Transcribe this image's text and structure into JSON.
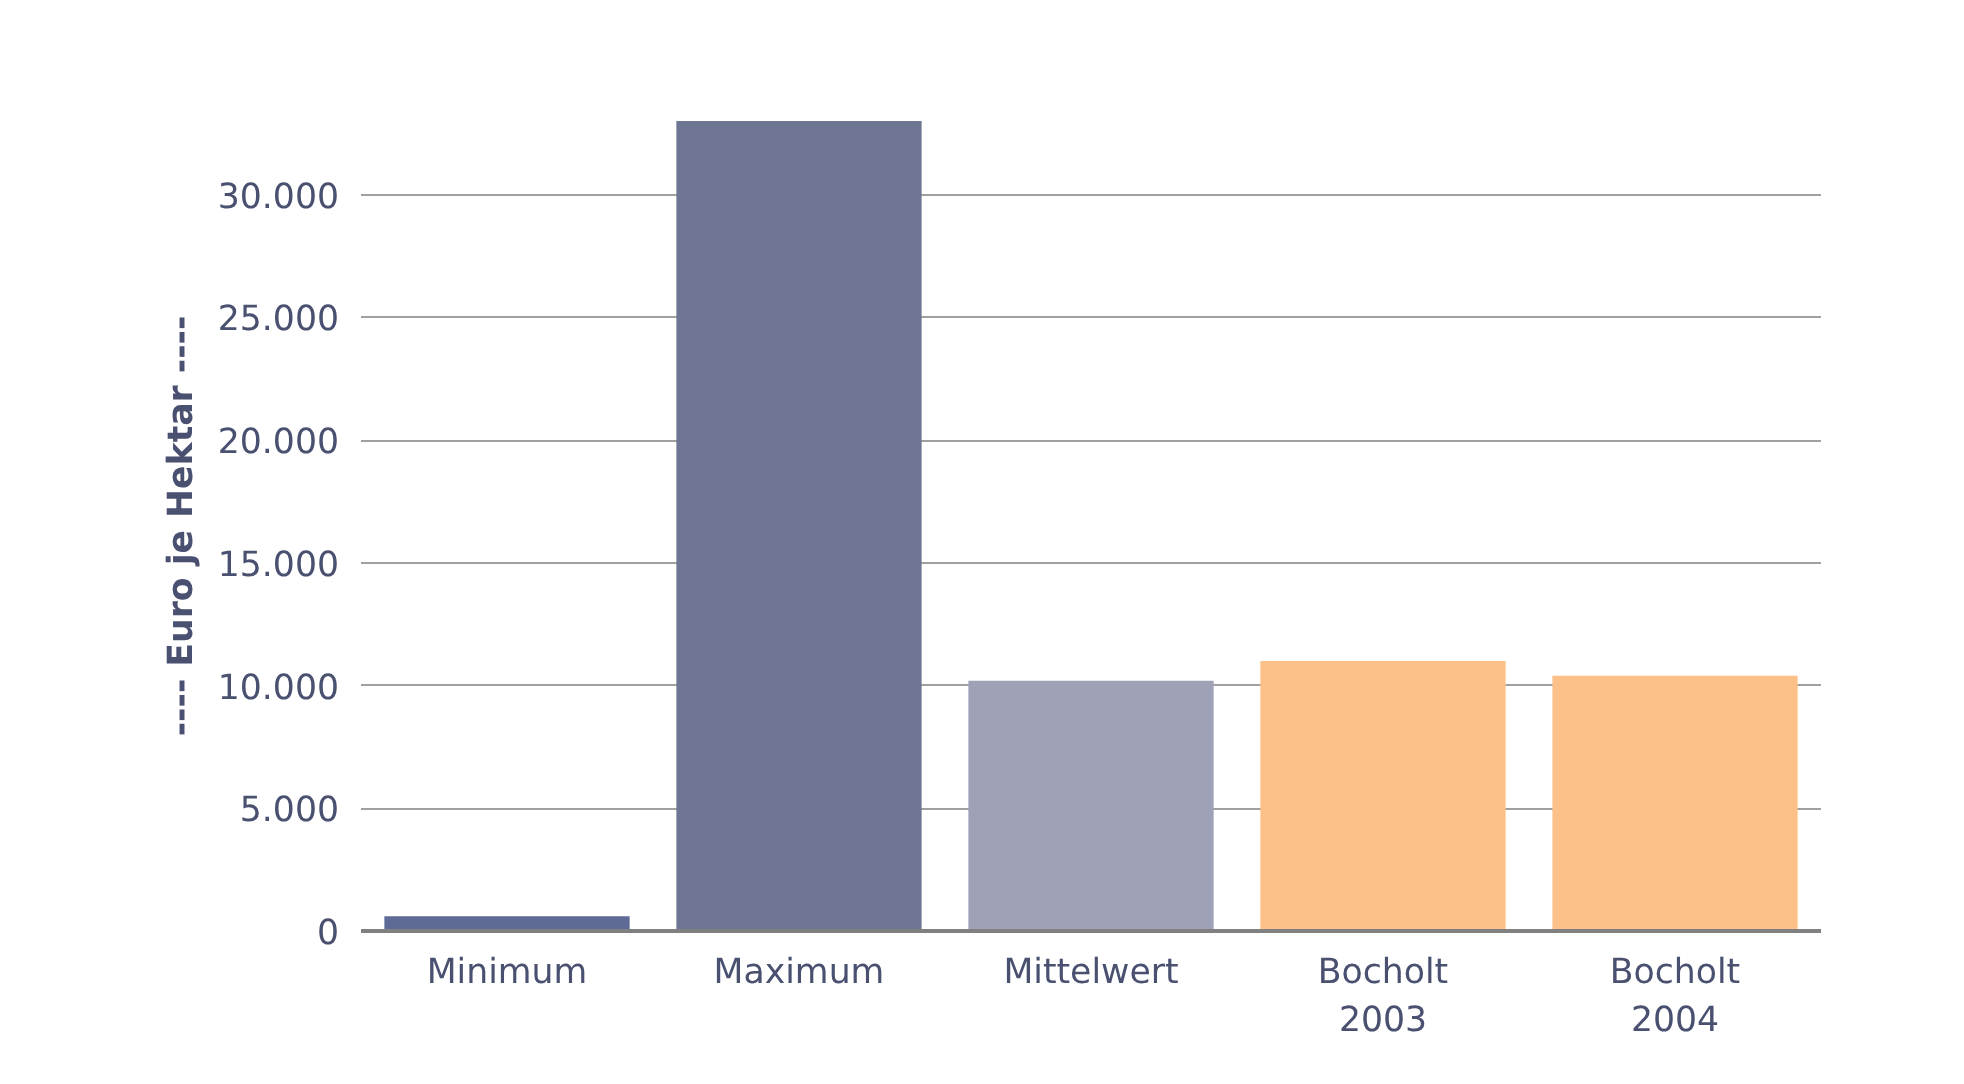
{
  "chart_data": {
    "type": "bar",
    "ylabel": "---- Euro je Hektar ----",
    "categories": [
      "Minimum",
      "Maximum",
      "Mittelwert",
      "Bocholt\n2003",
      "Bocholt\n2004"
    ],
    "values": [
      600,
      33000,
      10200,
      11000,
      10400
    ],
    "colors": [
      "#5d6b96",
      "#6e7693",
      "#9fa2b6",
      "#fdc088",
      "#fdc088"
    ],
    "ylim": [
      0,
      33000
    ],
    "yticks": [
      0,
      {
        "value": 5000,
        "label": "5.000"
      },
      {
        "value": 10000,
        "label": "10.000"
      },
      {
        "value": 15000,
        "label": "15.000"
      },
      {
        "value": 20000,
        "label": "20.000"
      },
      {
        "value": 25000,
        "label": "25.000"
      },
      {
        "value": 30000,
        "label": "30.000"
      }
    ],
    "grid": "y"
  }
}
